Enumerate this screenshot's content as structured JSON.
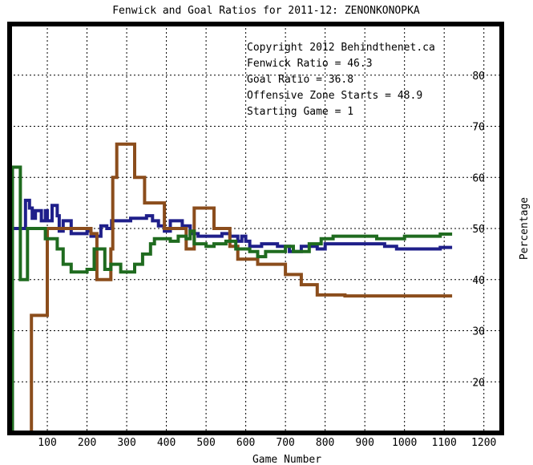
{
  "chart_data": {
    "type": "line",
    "title": "Fenwick and Goal Ratios for 2011-12: ZENONKONOPKA",
    "xlabel": "Game Number",
    "ylabel": "Percentage",
    "xlim": [
      5,
      1245
    ],
    "ylim": [
      10,
      90
    ],
    "x_ticks": [
      100,
      200,
      300,
      400,
      500,
      600,
      700,
      800,
      900,
      1000,
      1100,
      1200
    ],
    "y_ticks": [
      20,
      30,
      40,
      50,
      60,
      70,
      80
    ],
    "grid": true,
    "legend_position": "top-right",
    "legend": [
      {
        "text": "Copyright 2012 Behindthenet.ca",
        "color": "#000000"
      },
      {
        "text": "Fenwick Ratio = 46.3",
        "color": "#1f1f8a"
      },
      {
        "text": "Goal Ratio = 36.8",
        "color": "#8b4d1c"
      },
      {
        "text": "Offensive Zone Starts = 48.9",
        "color": "#1f6b1f"
      },
      {
        "text": "Starting Game = 1",
        "color": "#000000"
      }
    ],
    "series": [
      {
        "color": "#1f1f8a",
        "points": [
          [
            12,
            50
          ],
          [
            12,
            50
          ],
          [
            45,
            50
          ],
          [
            45,
            55.5
          ],
          [
            55,
            55.5
          ],
          [
            55,
            54
          ],
          [
            62,
            54
          ],
          [
            62,
            52
          ],
          [
            70,
            52
          ],
          [
            70,
            53.5
          ],
          [
            85,
            53.5
          ],
          [
            85,
            51.5
          ],
          [
            95,
            51.5
          ],
          [
            95,
            53.5
          ],
          [
            100,
            53.5
          ],
          [
            100,
            51.5
          ],
          [
            112,
            51.5
          ],
          [
            112,
            54.5
          ],
          [
            125,
            54.5
          ],
          [
            125,
            52.5
          ],
          [
            130,
            52.5
          ],
          [
            130,
            49.5
          ],
          [
            140,
            49.5
          ],
          [
            140,
            51.5
          ],
          [
            160,
            51.5
          ],
          [
            160,
            49
          ],
          [
            200,
            49
          ],
          [
            200,
            49.5
          ],
          [
            210,
            49.5
          ],
          [
            210,
            48.5
          ],
          [
            235,
            48.5
          ],
          [
            235,
            50.5
          ],
          [
            250,
            50.5
          ],
          [
            250,
            50
          ],
          [
            262,
            50
          ],
          [
            262,
            51.5
          ],
          [
            310,
            51.5
          ],
          [
            310,
            52
          ],
          [
            350,
            52
          ],
          [
            350,
            52.5
          ],
          [
            365,
            52.5
          ],
          [
            365,
            51.5
          ],
          [
            380,
            51.5
          ],
          [
            380,
            50.5
          ],
          [
            395,
            50.5
          ],
          [
            395,
            49.5
          ],
          [
            410,
            49.5
          ],
          [
            410,
            51.5
          ],
          [
            440,
            51.5
          ],
          [
            440,
            50.5
          ],
          [
            460,
            50.5
          ],
          [
            460,
            49
          ],
          [
            480,
            49
          ],
          [
            480,
            48.5
          ],
          [
            540,
            48.5
          ],
          [
            540,
            49
          ],
          [
            560,
            49
          ],
          [
            560,
            48.5
          ],
          [
            580,
            48.5
          ],
          [
            580,
            47.5
          ],
          [
            590,
            47.5
          ],
          [
            590,
            48.5
          ],
          [
            600,
            48.5
          ],
          [
            600,
            47.5
          ],
          [
            610,
            47.5
          ],
          [
            610,
            46.5
          ],
          [
            640,
            46.5
          ],
          [
            640,
            47
          ],
          [
            680,
            47
          ],
          [
            680,
            46.5
          ],
          [
            710,
            46.5
          ],
          [
            710,
            45.5
          ],
          [
            740,
            45.5
          ],
          [
            740,
            46.5
          ],
          [
            780,
            46.5
          ],
          [
            780,
            46
          ],
          [
            800,
            46
          ],
          [
            800,
            47
          ],
          [
            950,
            47
          ],
          [
            950,
            46.5
          ],
          [
            980,
            46.5
          ],
          [
            980,
            46
          ],
          [
            1090,
            46
          ],
          [
            1090,
            46.3
          ],
          [
            1120,
            46.3
          ]
        ]
      },
      {
        "color": "#8b4d1c",
        "points": [
          [
            60,
            10
          ],
          [
            60,
            33
          ],
          [
            100,
            33
          ],
          [
            100,
            50
          ],
          [
            130,
            50
          ],
          [
            130,
            50
          ],
          [
            210,
            50
          ],
          [
            210,
            49
          ],
          [
            225,
            49
          ],
          [
            225,
            40
          ],
          [
            260,
            40
          ],
          [
            260,
            46
          ],
          [
            265,
            46
          ],
          [
            265,
            60
          ],
          [
            275,
            60
          ],
          [
            275,
            66.5
          ],
          [
            320,
            66.5
          ],
          [
            320,
            60
          ],
          [
            345,
            60
          ],
          [
            345,
            55
          ],
          [
            395,
            55
          ],
          [
            395,
            50
          ],
          [
            450,
            50
          ],
          [
            450,
            46
          ],
          [
            470,
            46
          ],
          [
            470,
            54
          ],
          [
            520,
            54
          ],
          [
            520,
            50
          ],
          [
            560,
            50
          ],
          [
            560,
            46.5
          ],
          [
            580,
            46.5
          ],
          [
            580,
            44
          ],
          [
            630,
            44
          ],
          [
            630,
            43
          ],
          [
            700,
            43
          ],
          [
            700,
            41
          ],
          [
            740,
            41
          ],
          [
            740,
            39
          ],
          [
            780,
            39
          ],
          [
            780,
            37
          ],
          [
            850,
            37
          ],
          [
            850,
            36.8
          ],
          [
            1120,
            36.8
          ]
        ]
      },
      {
        "color": "#1f6b1f",
        "points": [
          [
            12,
            10
          ],
          [
            12,
            62
          ],
          [
            32,
            62
          ],
          [
            32,
            40
          ],
          [
            50,
            40
          ],
          [
            50,
            50
          ],
          [
            95,
            50
          ],
          [
            95,
            48
          ],
          [
            125,
            48
          ],
          [
            125,
            46
          ],
          [
            140,
            46
          ],
          [
            140,
            43
          ],
          [
            160,
            43
          ],
          [
            160,
            41.5
          ],
          [
            200,
            41.5
          ],
          [
            200,
            42
          ],
          [
            218,
            42
          ],
          [
            218,
            46
          ],
          [
            245,
            46
          ],
          [
            245,
            42
          ],
          [
            260,
            42
          ],
          [
            260,
            43
          ],
          [
            285,
            43
          ],
          [
            285,
            41.5
          ],
          [
            320,
            41.5
          ],
          [
            320,
            43
          ],
          [
            340,
            43
          ],
          [
            340,
            45
          ],
          [
            360,
            45
          ],
          [
            360,
            47
          ],
          [
            370,
            47
          ],
          [
            370,
            48
          ],
          [
            410,
            48
          ],
          [
            410,
            47.5
          ],
          [
            430,
            47.5
          ],
          [
            430,
            48.5
          ],
          [
            450,
            48.5
          ],
          [
            450,
            48
          ],
          [
            460,
            48
          ],
          [
            460,
            49.5
          ],
          [
            470,
            49.5
          ],
          [
            470,
            47
          ],
          [
            500,
            47
          ],
          [
            500,
            46.5
          ],
          [
            520,
            46.5
          ],
          [
            520,
            47
          ],
          [
            550,
            47
          ],
          [
            550,
            47.5
          ],
          [
            575,
            47.5
          ],
          [
            575,
            46
          ],
          [
            610,
            46
          ],
          [
            610,
            45.5
          ],
          [
            630,
            45.5
          ],
          [
            630,
            44.5
          ],
          [
            650,
            44.5
          ],
          [
            650,
            45.5
          ],
          [
            700,
            45.5
          ],
          [
            700,
            46.5
          ],
          [
            720,
            46.5
          ],
          [
            720,
            45.5
          ],
          [
            760,
            45.5
          ],
          [
            760,
            47
          ],
          [
            790,
            47
          ],
          [
            790,
            48
          ],
          [
            820,
            48
          ],
          [
            820,
            48.5
          ],
          [
            930,
            48.5
          ],
          [
            930,
            48
          ],
          [
            1000,
            48
          ],
          [
            1000,
            48.5
          ],
          [
            1090,
            48.5
          ],
          [
            1090,
            48.9
          ],
          [
            1120,
            48.9
          ]
        ]
      }
    ]
  }
}
